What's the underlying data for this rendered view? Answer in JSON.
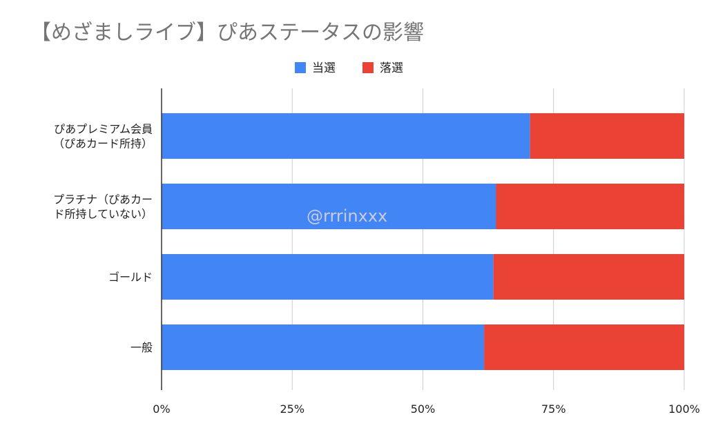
{
  "chart_data": {
    "type": "bar",
    "orientation": "horizontal",
    "stacked": "percent",
    "title": "【めざましライブ】ぴあステータスの影響",
    "categories": [
      [
        "ぴあプレミアム会員",
        "（ぴあカード所持）"
      ],
      [
        "プラチナ（ぴあカー",
        "ド所持していない）"
      ],
      [
        "ゴールド"
      ],
      [
        "一般"
      ]
    ],
    "series": [
      {
        "name": "当選",
        "color": "#4285f4",
        "values": [
          70.5,
          64.0,
          63.5,
          61.7
        ]
      },
      {
        "name": "落選",
        "color": "#ea4335",
        "values": [
          29.5,
          36.0,
          36.5,
          38.3
        ]
      }
    ],
    "xlim": [
      0,
      100
    ],
    "ticks": [
      "0%",
      "25%",
      "50%",
      "75%",
      "100%"
    ],
    "grid": true,
    "legend_position": "top",
    "watermark": "@rrrinxxx"
  }
}
